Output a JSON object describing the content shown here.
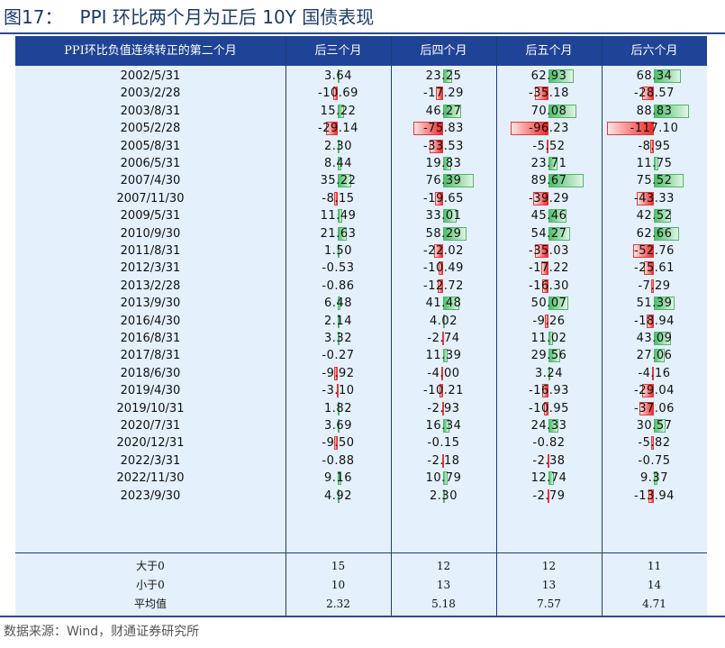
{
  "figure": {
    "title": "图17：   PPI 环比两个月为正后 10Y 国债表现",
    "source": "数据来源：Wind，财通证券研究所"
  },
  "table": {
    "headers": [
      "PPI环比负值连续转正的第二个月",
      "后三个月",
      "后四个月",
      "后五个月",
      "后六个月"
    ],
    "rows": [
      {
        "date": "2002/5/31",
        "v": [
          "3.64",
          "23.25",
          "62.93",
          "68.34"
        ]
      },
      {
        "date": "2003/2/28",
        "v": [
          "-10.69",
          "-17.29",
          "-35.18",
          "-28.57"
        ]
      },
      {
        "date": "2003/8/31",
        "v": [
          "15.22",
          "46.27",
          "70.08",
          "88.83"
        ]
      },
      {
        "date": "2005/2/28",
        "v": [
          "-29.14",
          "-75.83",
          "-96.23",
          "-117.10"
        ]
      },
      {
        "date": "2005/8/31",
        "v": [
          "2.30",
          "-33.53",
          "-5.52",
          "-8.95"
        ]
      },
      {
        "date": "2006/5/31",
        "v": [
          "8.44",
          "19.83",
          "23.71",
          "11.75"
        ]
      },
      {
        "date": "2007/4/30",
        "v": [
          "35.22",
          "76.39",
          "89.67",
          "75.52"
        ]
      },
      {
        "date": "2007/11/30",
        "v": [
          "-8.15",
          "-19.65",
          "-39.29",
          "-43.33"
        ]
      },
      {
        "date": "2009/5/31",
        "v": [
          "11.49",
          "33.01",
          "45.46",
          "42.52"
        ]
      },
      {
        "date": "2010/9/30",
        "v": [
          "21.63",
          "58.29",
          "54.27",
          "62.66"
        ]
      },
      {
        "date": "2011/8/31",
        "v": [
          "1.50",
          "-22.02",
          "-35.03",
          "-52.76"
        ]
      },
      {
        "date": "2012/3/31",
        "v": [
          "-0.53",
          "-10.49",
          "-17.22",
          "-25.61"
        ]
      },
      {
        "date": "2013/2/28",
        "v": [
          "-0.86",
          "-12.72",
          "-16.30",
          "-7.29"
        ]
      },
      {
        "date": "2013/9/30",
        "v": [
          "6.48",
          "41.48",
          "50.07",
          "51.39"
        ]
      },
      {
        "date": "2016/4/30",
        "v": [
          "2.14",
          "4.02",
          "-9.26",
          "-18.94"
        ]
      },
      {
        "date": "2016/8/31",
        "v": [
          "3.32",
          "-2.74",
          "11.02",
          "43.09"
        ]
      },
      {
        "date": "2017/8/31",
        "v": [
          "-0.27",
          "11.39",
          "29.56",
          "27.06"
        ]
      },
      {
        "date": "2018/6/30",
        "v": [
          "-9.92",
          "-4.00",
          "3.24",
          "-4.16"
        ]
      },
      {
        "date": "2019/4/30",
        "v": [
          "-3.10",
          "-10.21",
          "-16.93",
          "-29.04"
        ]
      },
      {
        "date": "2019/10/31",
        "v": [
          "1.82",
          "-2.93",
          "-10.95",
          "-37.06"
        ]
      },
      {
        "date": "2020/7/31",
        "v": [
          "3.69",
          "16.34",
          "24.33",
          "30.57"
        ]
      },
      {
        "date": "2020/12/31",
        "v": [
          "-9.50",
          "-0.15",
          "-0.82",
          "-5.82"
        ]
      },
      {
        "date": "2022/3/31",
        "v": [
          "-0.88",
          "-2.18",
          "-2.38",
          "-0.75"
        ]
      },
      {
        "date": "2022/11/30",
        "v": [
          "9.16",
          "10.79",
          "12.74",
          "9.37"
        ]
      },
      {
        "date": "2023/9/30",
        "v": [
          "4.92",
          "2.30",
          "-2.79",
          "-13.94"
        ]
      }
    ],
    "summary": [
      {
        "label": "大于0",
        "v": [
          "15",
          "12",
          "12",
          "11"
        ]
      },
      {
        "label": "小于0",
        "v": [
          "10",
          "13",
          "13",
          "14"
        ]
      },
      {
        "label": "平均值",
        "v": [
          "2.32",
          "5.18",
          "7.57",
          "4.71"
        ]
      }
    ]
  },
  "colors": {
    "header_bg": "#1f4396",
    "table_bg": "#e4f0fb",
    "positive_bar": "#4bbf68",
    "negative_bar": "#ee2a2a"
  }
}
